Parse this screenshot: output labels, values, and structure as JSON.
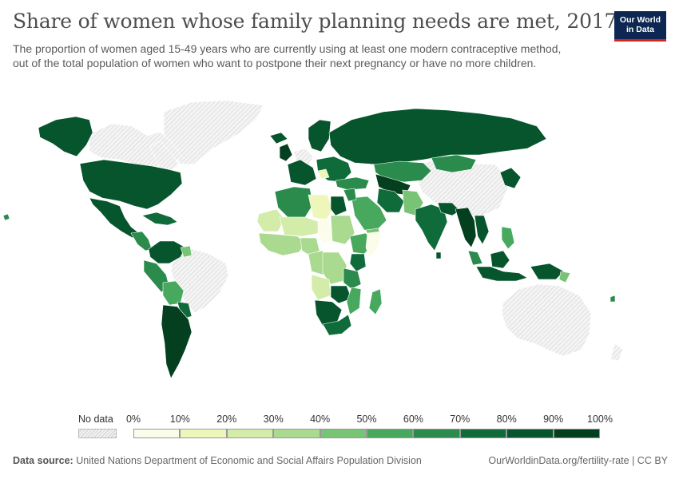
{
  "header": {
    "title": "Share of women whose family planning needs are met, 2017",
    "subtitle_line1": "The proportion of women aged 15-49 years who are currently using at least one modern contraceptive method,",
    "subtitle_line2": "out of the total population of women who want to postpone their next pregnancy or have no more children."
  },
  "logo": {
    "line1": "Our World",
    "line2": "in Data"
  },
  "legend": {
    "no_data_label": "No data",
    "ticks": [
      "0%",
      "10%",
      "20%",
      "30%",
      "40%",
      "50%",
      "60%",
      "70%",
      "80%",
      "90%",
      "100%"
    ],
    "bins": [
      {
        "from": 0,
        "to": 10,
        "color": "#fbfce9"
      },
      {
        "from": 10,
        "to": 20,
        "color": "#eef7b9"
      },
      {
        "from": 20,
        "to": 30,
        "color": "#d4ecaa"
      },
      {
        "from": 30,
        "to": 40,
        "color": "#a9da90"
      },
      {
        "from": 40,
        "to": 50,
        "color": "#79c376"
      },
      {
        "from": 50,
        "to": 60,
        "color": "#48a95e"
      },
      {
        "from": 60,
        "to": 70,
        "color": "#2a8b4d"
      },
      {
        "from": 70,
        "to": 80,
        "color": "#0f6b3a"
      },
      {
        "from": 80,
        "to": 90,
        "color": "#07552c"
      },
      {
        "from": 90,
        "to": 100,
        "color": "#04401f"
      }
    ],
    "no_data_color": "#e9e9e9"
  },
  "footer": {
    "source_label": "Data source:",
    "source_text": "United Nations Department of Economic and Social Affairs Population Division",
    "url_text": "OurWorldinData.org/fertility-rate | CC BY"
  }
}
